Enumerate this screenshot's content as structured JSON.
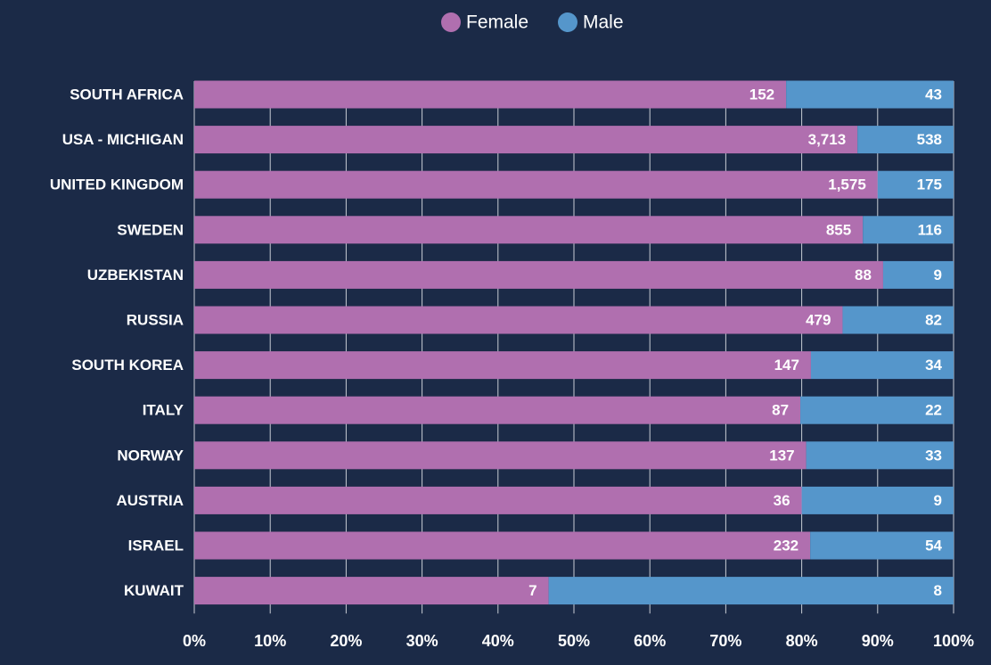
{
  "chart_data": {
    "type": "bar",
    "orientation": "horizontal",
    "stacking": "percent",
    "categories": [
      "SOUTH AFRICA",
      "USA - MICHIGAN",
      "UNITED KINGDOM",
      "SWEDEN",
      "UZBEKISTAN",
      "RUSSIA",
      "SOUTH KOREA",
      "ITALY",
      "NORWAY",
      "AUSTRIA",
      "ISRAEL",
      "KUWAIT"
    ],
    "series": [
      {
        "name": "Female",
        "color": "#b06faf",
        "values": [
          152,
          3713,
          1575,
          855,
          88,
          479,
          147,
          87,
          137,
          36,
          232,
          7
        ],
        "value_labels": [
          "152",
          "3,713",
          "1,575",
          "855",
          "88",
          "479",
          "147",
          "87",
          "137",
          "36",
          "232",
          "7"
        ]
      },
      {
        "name": "Male",
        "color": "#5596cb",
        "values": [
          43,
          538,
          175,
          116,
          9,
          82,
          34,
          22,
          33,
          9,
          54,
          8
        ]
      }
    ],
    "xlim": [
      0,
      100
    ],
    "xticks": [
      {
        "value": 0,
        "label": "0%"
      },
      {
        "value": 10,
        "label": "10%"
      },
      {
        "value": 20,
        "label": "20%"
      },
      {
        "value": 30,
        "label": "30%"
      },
      {
        "value": 40,
        "label": "40%"
      },
      {
        "value": 50,
        "label": "50%"
      },
      {
        "value": 60,
        "label": "60%"
      },
      {
        "value": 70,
        "label": "70%"
      },
      {
        "value": 80,
        "label": "80%"
      },
      {
        "value": 90,
        "label": "90%"
      },
      {
        "value": 100,
        "label": "100%"
      }
    ],
    "grid": true,
    "legend": "top"
  }
}
